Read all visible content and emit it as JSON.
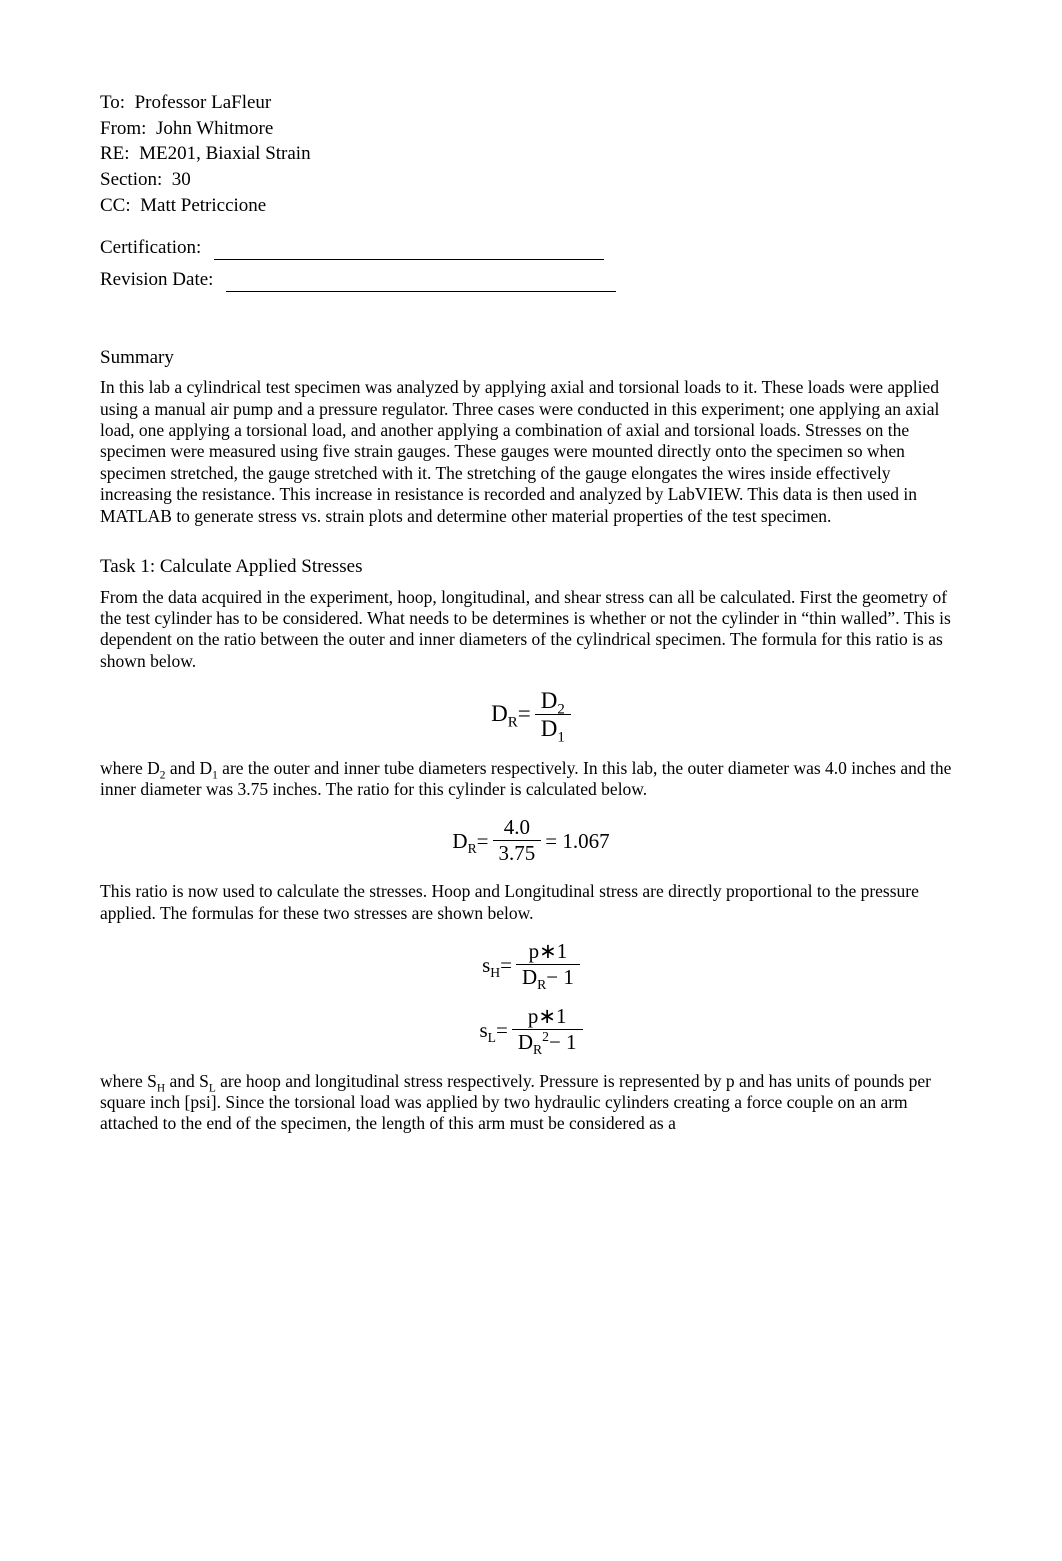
{
  "header": {
    "to_label": "To:",
    "to_value": "Professor LaFleur",
    "from_label": "From:",
    "from_value": "John Whitmore",
    "re_label": "RE:",
    "re_value": "ME201, Biaxial Strain",
    "section_label": "Section:",
    "section_value": "30",
    "cc_label": "CC:",
    "cc_value": "Matt Petriccione",
    "certification_label": "Certification:",
    "revision_label": "Revision Date:"
  },
  "summary": {
    "heading": "Summary",
    "body": "In this lab a cylindrical test specimen was analyzed by applying axial and torsional loads to it. These loads were applied using a manual air pump and a pressure regulator. Three cases were conducted in this experiment; one applying an axial load, one applying a torsional load, and another applying a combination of axial and torsional loads. Stresses on the specimen were measured using five strain gauges. These gauges were mounted directly onto the specimen so when specimen stretched, the gauge stretched with it. The stretching of the gauge elongates the wires inside effectively increasing the resistance. This increase in resistance is recorded and analyzed by LabVIEW. This data is then used in MATLAB to generate stress vs. strain plots and determine other material properties of the test specimen."
  },
  "task1": {
    "heading": "Task 1: Calculate Applied Stresses",
    "para1": "From the data acquired in the experiment, hoop, longitudinal, and shear stress can all be calculated. First the geometry of the test cylinder has to be considered. What needs to be determines is whether or not the cylinder in “thin walled”. This is dependent on the ratio between the outer and inner diameters of the cylindrical specimen. The formula for this ratio is as shown below.",
    "eq1": {
      "lhs_base": "D",
      "lhs_sub": "R",
      "num_base": "D",
      "num_sub": "2",
      "den_base": "D",
      "den_sub": "1"
    },
    "para2_a": "where D",
    "para2_b": " and D",
    "para2_c": " are the outer and inner tube diameters respectively. In this lab, the outer diameter was 4.0 inches and the inner diameter was 3.75 inches. The ratio for this cylinder is calculated below.",
    "sub2": "2",
    "sub1": "1",
    "eq2": {
      "lhs_base": "D",
      "lhs_sub": "R",
      "num": "4.0",
      "den": "3.75",
      "result": "1.067"
    },
    "para3": "This ratio is now used to calculate the stresses. Hoop and Longitudinal stress are directly proportional to the pressure applied. The formulas for these two stresses are shown below.",
    "eq3": {
      "lhs_base": "s",
      "lhs_sub": "H",
      "num": "p∗1",
      "den_base": "D",
      "den_sub": "R",
      "den_tail": "− 1"
    },
    "eq4": {
      "lhs_base": "s",
      "lhs_sub": "L",
      "num": "p∗1",
      "den_base": "D",
      "den_sub": "R",
      "den_sup": "2",
      "den_tail": "− 1"
    },
    "para4_a": "where S",
    "para4_b": " and S",
    "para4_c": " are hoop and longitudinal stress respectively. Pressure is represented by p and has units of pounds per square inch [psi]. Since the torsional load was applied by two hydraulic cylinders creating a force couple on an arm attached to the end of the specimen, the length of this arm must be considered as a",
    "subH": "H",
    "subL": "L"
  }
}
